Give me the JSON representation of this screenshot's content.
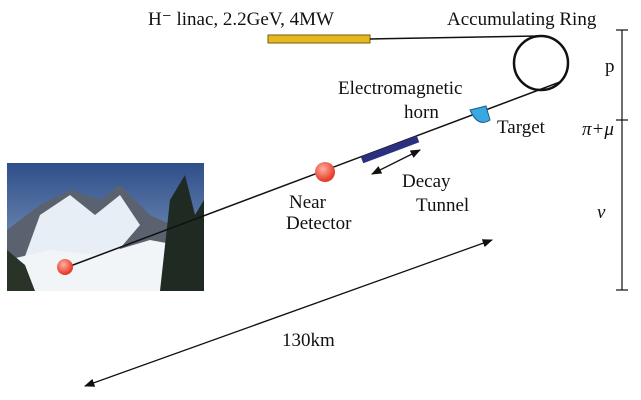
{
  "labels": {
    "linac": "H⁻ linac, 2.2GeV, 4MW",
    "ring": "Accumulating Ring",
    "horn": [
      "Electromagnetic",
      "horn"
    ],
    "target": "Target",
    "near_detector": [
      "Near",
      "Detector"
    ],
    "decay_tunnel": [
      "Decay",
      "Tunnel"
    ],
    "distance": "130km"
  },
  "stages": [
    "p",
    "π+μ",
    "ν"
  ]
}
